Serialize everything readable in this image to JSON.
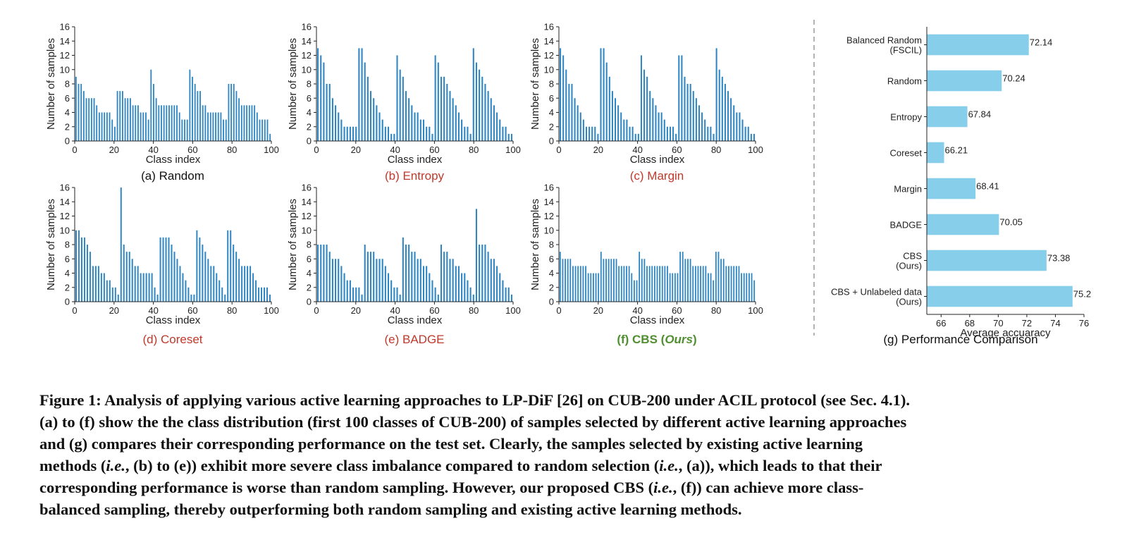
{
  "colors": {
    "bar": "#2f86c3",
    "hbar": "#87ceeb",
    "axis": "#222222",
    "sep": "#9a9a9a"
  },
  "histograms": [
    {
      "id": "a",
      "caption": "(a) Random",
      "caption_style": "black",
      "values": [
        9,
        8,
        8,
        7,
        6,
        6,
        6,
        6,
        5,
        4,
        4,
        4,
        4,
        4,
        3,
        2,
        7,
        7,
        7,
        6,
        6,
        6,
        5,
        5,
        5,
        4,
        4,
        4,
        3,
        10,
        8,
        6,
        5,
        5,
        5,
        5,
        5,
        5,
        5,
        5,
        4,
        3,
        3,
        3,
        10,
        9,
        8,
        7,
        7,
        5,
        5,
        4,
        4,
        4,
        4,
        4,
        4,
        3,
        3,
        8,
        8,
        8,
        7,
        6,
        5,
        5,
        5,
        5,
        5,
        5,
        4,
        3,
        3,
        3,
        3,
        1
      ]
    },
    {
      "id": "b",
      "caption": "(b) Entropy",
      "caption_style": "red",
      "values": [
        13,
        12,
        11,
        8,
        8,
        6,
        5,
        4,
        3,
        2,
        2,
        2,
        2,
        2,
        13,
        13,
        11,
        9,
        7,
        6,
        5,
        4,
        3,
        2,
        2,
        1,
        1,
        12,
        10,
        9,
        7,
        6,
        5,
        4,
        4,
        3,
        3,
        2,
        2,
        1,
        12,
        11,
        9,
        9,
        8,
        7,
        6,
        5,
        4,
        3,
        2,
        2,
        1,
        13,
        11,
        10,
        9,
        8,
        7,
        6,
        5,
        4,
        3,
        2,
        2,
        1,
        1
      ]
    },
    {
      "id": "c",
      "caption": "(c) Margin",
      "caption_style": "red",
      "values": [
        13,
        12,
        10,
        8,
        8,
        6,
        5,
        4,
        3,
        2,
        2,
        2,
        2,
        1,
        13,
        13,
        11,
        9,
        7,
        6,
        5,
        4,
        3,
        3,
        2,
        2,
        1,
        1,
        12,
        10,
        9,
        7,
        6,
        5,
        4,
        4,
        3,
        2,
        2,
        2,
        1,
        12,
        12,
        9,
        8,
        8,
        7,
        6,
        5,
        4,
        3,
        2,
        2,
        1,
        13,
        10,
        9,
        8,
        7,
        6,
        5,
        4,
        4,
        3,
        2,
        2,
        1,
        1
      ]
    },
    {
      "id": "d",
      "caption": "(d) Coreset",
      "caption_style": "red",
      "values": [
        10,
        10,
        9,
        9,
        8,
        7,
        5,
        5,
        5,
        4,
        4,
        3,
        3,
        2,
        2,
        1,
        16,
        8,
        7,
        7,
        6,
        5,
        5,
        4,
        4,
        4,
        4,
        4,
        2,
        1,
        9,
        9,
        9,
        9,
        8,
        7,
        6,
        5,
        4,
        3,
        2,
        1,
        1,
        10,
        9,
        8,
        7,
        6,
        5,
        5,
        4,
        3,
        2,
        1,
        10,
        10,
        8,
        7,
        6,
        5,
        5,
        5,
        5,
        4,
        3,
        2,
        2,
        2,
        2,
        1
      ]
    },
    {
      "id": "e",
      "caption": "(e) BADGE",
      "caption_style": "red",
      "values": [
        8,
        8,
        8,
        8,
        7,
        6,
        6,
        6,
        5,
        4,
        3,
        3,
        2,
        2,
        2,
        1,
        8,
        7,
        7,
        7,
        6,
        6,
        6,
        5,
        4,
        3,
        2,
        2,
        1,
        9,
        8,
        8,
        7,
        7,
        6,
        6,
        5,
        5,
        4,
        3,
        2,
        1,
        8,
        7,
        7,
        6,
        6,
        5,
        5,
        4,
        4,
        3,
        2,
        1,
        13,
        8,
        8,
        8,
        7,
        6,
        6,
        5,
        4,
        3,
        2,
        2,
        1
      ]
    },
    {
      "id": "f",
      "caption_parts": [
        "(f) CBS (",
        "Ours",
        ")"
      ],
      "caption_style": "green",
      "values": [
        7,
        6,
        6,
        6,
        6,
        5,
        5,
        5,
        5,
        5,
        5,
        4,
        4,
        4,
        4,
        4,
        7,
        6,
        6,
        6,
        6,
        6,
        6,
        5,
        5,
        5,
        5,
        5,
        4,
        3,
        3,
        7,
        6,
        6,
        5,
        5,
        5,
        5,
        5,
        5,
        5,
        5,
        5,
        4,
        4,
        4,
        4,
        7,
        7,
        6,
        6,
        6,
        5,
        5,
        5,
        5,
        5,
        5,
        4,
        4,
        3,
        7,
        7,
        6,
        6,
        5,
        5,
        5,
        5,
        5,
        5,
        4,
        4,
        4,
        4,
        4,
        3
      ]
    }
  ],
  "hist_axes": {
    "xlabel": "Class index",
    "ylabel": "Number of samples",
    "xticks": [
      "0",
      "20",
      "40",
      "60",
      "80",
      "100"
    ],
    "yticks": [
      "0",
      "2",
      "4",
      "6",
      "8",
      "10",
      "12",
      "14",
      "16"
    ],
    "xlim": [
      0,
      100
    ],
    "ylim": [
      0,
      16
    ]
  },
  "chart_data": [
    {
      "type": "bar",
      "title": "(a) Random",
      "xlabel": "Class index",
      "ylabel": "Number of samples",
      "xlim": [
        0,
        100
      ],
      "ylim": [
        0,
        16
      ],
      "note_values": "see histograms[0].values"
    },
    {
      "type": "bar",
      "title": "(b) Entropy",
      "xlabel": "Class index",
      "ylabel": "Number of samples",
      "xlim": [
        0,
        100
      ],
      "ylim": [
        0,
        16
      ]
    },
    {
      "type": "bar",
      "title": "(c) Margin",
      "xlabel": "Class index",
      "ylabel": "Number of samples",
      "xlim": [
        0,
        100
      ],
      "ylim": [
        0,
        16
      ]
    },
    {
      "type": "bar",
      "title": "(d) Coreset",
      "xlabel": "Class index",
      "ylabel": "Number of samples",
      "xlim": [
        0,
        100
      ],
      "ylim": [
        0,
        16
      ]
    },
    {
      "type": "bar",
      "title": "(e) BADGE",
      "xlabel": "Class index",
      "ylabel": "Number of samples",
      "xlim": [
        0,
        100
      ],
      "ylim": [
        0,
        16
      ]
    },
    {
      "type": "bar",
      "title": "(f) CBS (Ours)",
      "xlabel": "Class index",
      "ylabel": "Number of samples",
      "xlim": [
        0,
        100
      ],
      "ylim": [
        0,
        16
      ]
    },
    {
      "type": "bar",
      "orientation": "horizontal",
      "title": "(g) Performance Comparison",
      "xlabel": "Average accuaracy",
      "xlim": [
        65,
        76
      ],
      "categories": [
        [
          "Balanced Random",
          "(FSCIL)"
        ],
        [
          "Random"
        ],
        [
          "Entropy"
        ],
        [
          "Coreset"
        ],
        [
          "Margin"
        ],
        [
          "BADGE"
        ],
        [
          "CBS",
          "(Ours)"
        ],
        [
          "CBS + Unlabeled data",
          "(Ours)"
        ]
      ],
      "values": [
        72.14,
        70.24,
        67.84,
        66.21,
        68.41,
        70.05,
        73.38,
        75.2
      ],
      "value_labels": [
        "72.14",
        "70.24",
        "67.84",
        "66.21",
        "68.41",
        "70.05",
        "73.38",
        "75.2"
      ],
      "xticks": [
        "66",
        "68",
        "70",
        "72",
        "74",
        "76"
      ]
    }
  ],
  "caption": {
    "line1": "Figure 1: Analysis of applying various active learning approaches to LP-DiF [26] on CUB-200 under ACIL protocol (see Sec. 4.1).",
    "line2": "(a) to (f) show the the class distribution (first 100 classes of CUB-200) of samples selected by different active learning approaches",
    "line3": "and (g) compares their corresponding performance on the test set. Clearly, the samples selected by existing active learning",
    "line4a": "methods (",
    "ie": "i.e.",
    "line4b": ", (b) to (e)) exhibit more severe class imbalance compared to random selection (",
    "line4c": ", (a)), which leads to that their",
    "line5a": "corresponding performance is worse than random sampling. However, our proposed CBS (",
    "line5b": ", (f)) can achieve more class-",
    "line6": "balanced sampling, thereby outperforming both random sampling and existing active learning methods."
  }
}
